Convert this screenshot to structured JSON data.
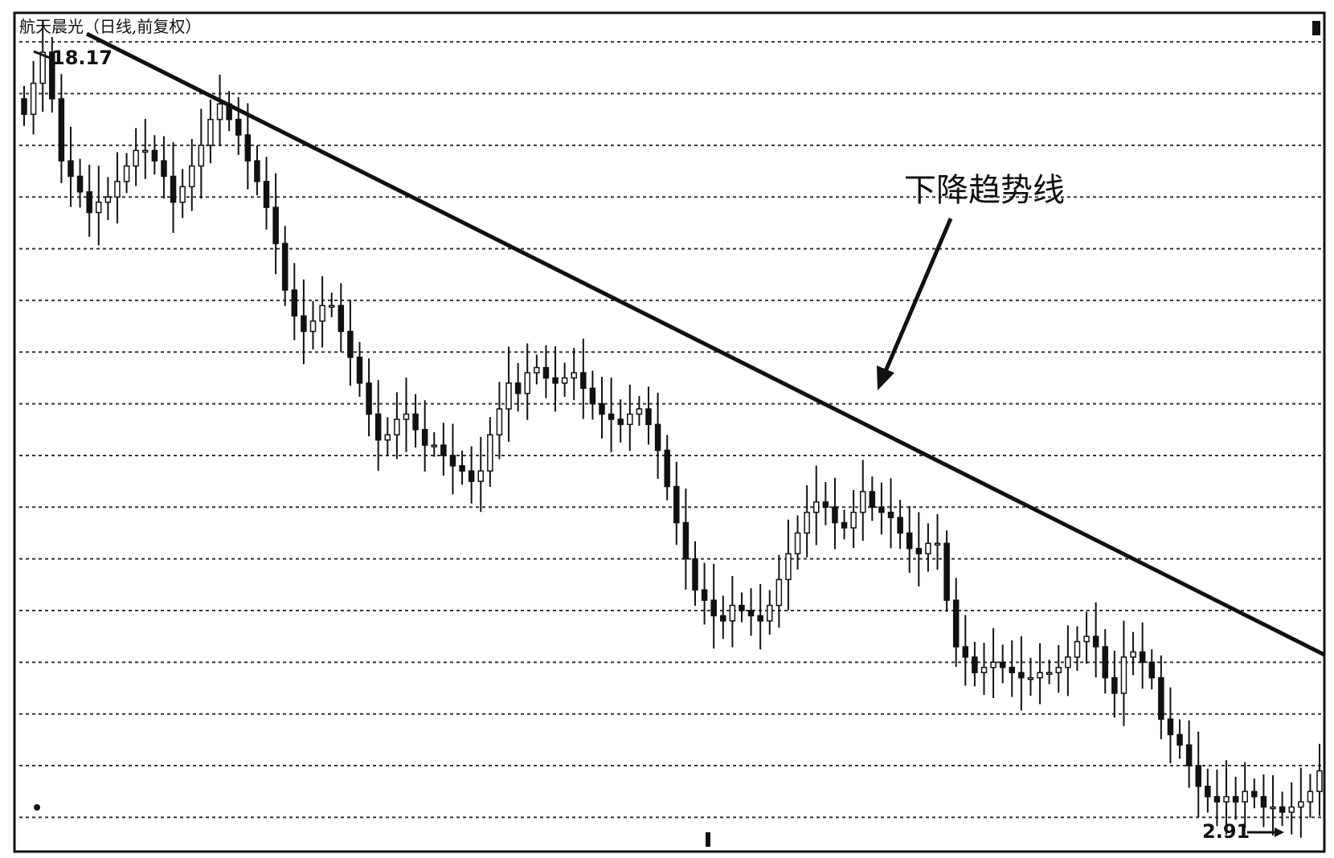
{
  "chart_data": {
    "type": "candlestick",
    "title": "航天晨光（日线,前复权）",
    "annotation": "下降趋势线",
    "high_label": "18.17",
    "low_label": "2.91",
    "grid": true,
    "ylim": [
      2.4,
      18.5
    ],
    "gridlines": [
      18.0,
      17.0,
      16.0,
      15.0,
      14.0,
      13.0,
      12.0,
      11.0,
      10.0,
      9.0,
      8.0,
      7.0,
      6.0,
      5.0,
      4.0,
      3.0
    ],
    "series": [
      {
        "values": [
          16.6,
          17.2,
          17.8,
          16.9,
          15.7,
          15.4,
          15.1,
          14.7,
          14.9,
          15.0,
          15.3,
          15.6,
          15.9,
          15.9,
          15.7,
          15.4,
          14.9,
          15.2,
          15.6,
          16.0,
          16.5,
          16.8,
          16.5,
          16.2,
          15.7,
          15.3,
          14.8,
          14.1,
          13.2,
          12.7,
          12.4,
          12.6,
          12.9,
          12.9,
          12.4,
          11.9,
          11.4,
          10.8,
          10.3,
          10.4,
          10.7,
          10.8,
          10.5,
          10.2,
          10.2,
          10.0,
          9.8,
          9.7,
          9.5,
          9.7,
          10.4,
          10.9,
          11.4,
          11.2,
          11.6,
          11.7,
          11.5,
          11.4,
          11.5,
          11.6,
          11.3,
          11.0,
          10.8,
          10.7,
          10.6,
          10.8,
          10.9,
          10.6,
          10.1,
          9.4,
          8.7,
          8.0,
          7.4,
          7.2,
          6.9,
          6.8,
          7.1,
          7.0,
          6.9,
          6.8,
          7.1,
          7.6,
          8.1,
          8.5,
          8.9,
          9.1,
          9.0,
          8.7,
          8.6,
          8.9,
          9.3,
          9.0,
          8.9,
          8.8,
          8.5,
          8.2,
          8.1,
          8.3,
          8.3,
          7.2,
          6.3,
          6.1,
          5.8,
          5.9,
          6.0,
          5.9,
          5.8,
          5.7,
          5.7,
          5.8,
          5.8,
          5.9,
          6.1,
          6.4,
          6.5,
          6.3,
          5.7,
          5.4,
          6.1,
          6.2,
          6.0,
          5.7,
          4.9,
          4.6,
          4.4,
          4.0,
          3.6,
          3.4,
          3.3,
          3.4,
          3.3,
          3.5,
          3.4,
          3.2,
          3.2,
          3.1,
          3.2,
          3.3,
          3.5,
          3.9
        ]
      }
    ]
  },
  "colors": {
    "background": "#ffffff",
    "ink": "#111111",
    "grid": "#333333"
  }
}
